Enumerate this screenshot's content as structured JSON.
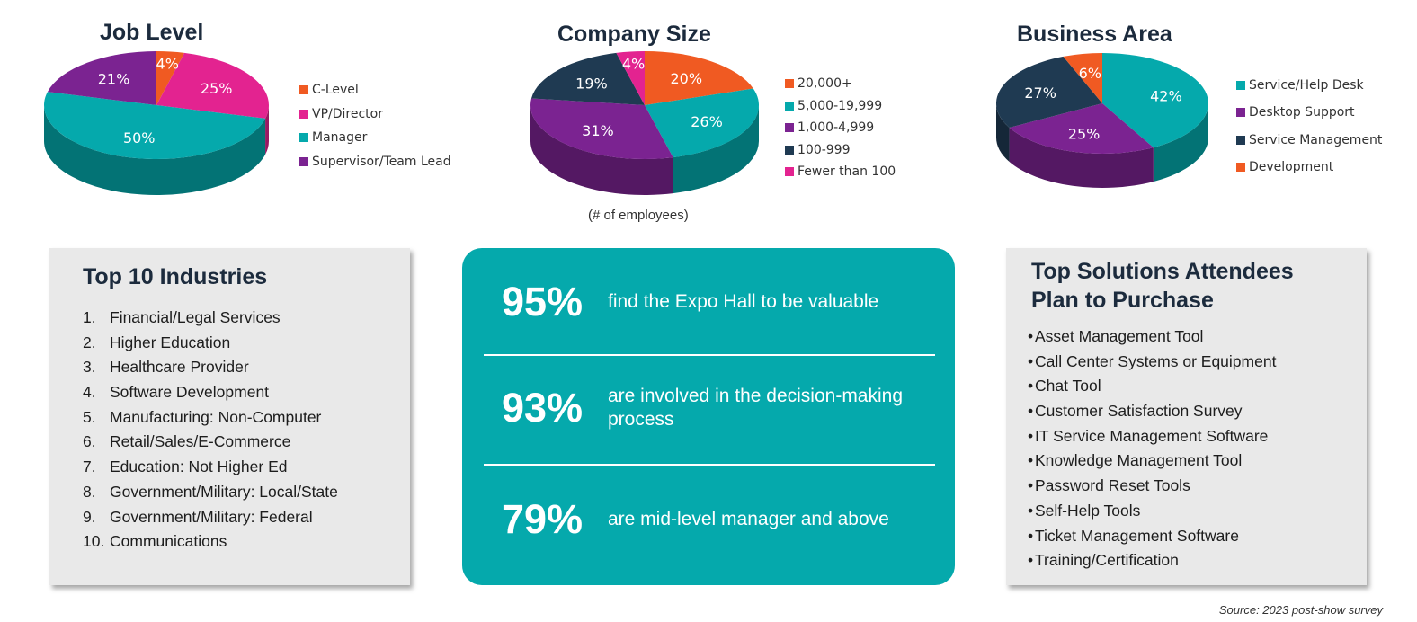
{
  "chart_data": [
    {
      "type": "pie",
      "title": "Job Level",
      "slices": [
        {
          "label": "C-Level",
          "value": 4,
          "color": "#f05a22"
        },
        {
          "label": "VP/Director",
          "value": 25,
          "color": "#e32390"
        },
        {
          "label": "Manager",
          "value": 50,
          "color": "#05a9ac"
        },
        {
          "label": "Supervisor/Team Lead",
          "value": 21,
          "color": "#7b2391"
        }
      ],
      "data_labels": [
        "4%",
        "25%",
        "50%",
        "21%"
      ],
      "legend_position": "right"
    },
    {
      "type": "pie",
      "title": "Company Size",
      "subtitle": "(# of employees)",
      "slices": [
        {
          "label": "20,000+",
          "value": 20,
          "color": "#f05a22"
        },
        {
          "label": "5,000-19,999",
          "value": 26,
          "color": "#05a9ac"
        },
        {
          "label": "1,000-4,999",
          "value": 31,
          "color": "#7b2391"
        },
        {
          "label": "100-999",
          "value": 19,
          "color": "#1f3a52"
        },
        {
          "label": "Fewer than 100",
          "value": 4,
          "color": "#e32390"
        }
      ],
      "data_labels": [
        "20%",
        "26%",
        "31%",
        "19%",
        "4%"
      ],
      "legend_position": "right"
    },
    {
      "type": "pie",
      "title": "Business Area",
      "slices": [
        {
          "label": "Service/Help Desk",
          "value": 42,
          "color": "#05a9ac"
        },
        {
          "label": "Desktop Support",
          "value": 25,
          "color": "#7b2391"
        },
        {
          "label": "Service Management",
          "value": 27,
          "color": "#1f3a52"
        },
        {
          "label": "Development",
          "value": 6,
          "color": "#f05a22"
        }
      ],
      "data_labels": [
        "42%",
        "25%",
        "27%",
        "6%"
      ],
      "legend_position": "right"
    }
  ],
  "industries": {
    "title": "Top 10 Industries",
    "items": [
      {
        "num": "1.",
        "label": "Financial/Legal Services"
      },
      {
        "num": "2.",
        "label": "Higher Education"
      },
      {
        "num": "3.",
        "label": "Healthcare Provider"
      },
      {
        "num": "4.",
        "label": "Software Development"
      },
      {
        "num": "5.",
        "label": "Manufacturing: Non-Computer"
      },
      {
        "num": "6.",
        "label": "Retail/Sales/E-Commerce"
      },
      {
        "num": "7.",
        "label": "Education: Not Higher Ed"
      },
      {
        "num": "8.",
        "label": "Government/Military: Local/State"
      },
      {
        "num": "9.",
        "label": "Government/Military: Federal"
      },
      {
        "num": "10.",
        "label": "Communications"
      }
    ]
  },
  "stats": [
    {
      "value": "95%",
      "text": "find the Expo Hall to be valuable"
    },
    {
      "value": "93%",
      "text": "are involved in the decision-making process"
    },
    {
      "value": "79%",
      "text": "are mid-level manager and above"
    }
  ],
  "solutions": {
    "title_line1": "Top Solutions Attendees",
    "title_line2": "Plan to Purchase",
    "bullet": "•",
    "items": [
      "Asset Management Tool",
      "Call Center Systems or Equipment",
      "Chat Tool",
      "Customer Satisfaction Survey",
      "IT Service Management Software",
      "Knowledge Management Tool",
      "Password Reset Tools",
      "Self-Help Tools",
      "Ticket Management Software",
      "Training/Certification"
    ]
  },
  "source": "Source: 2023 post-show survey"
}
